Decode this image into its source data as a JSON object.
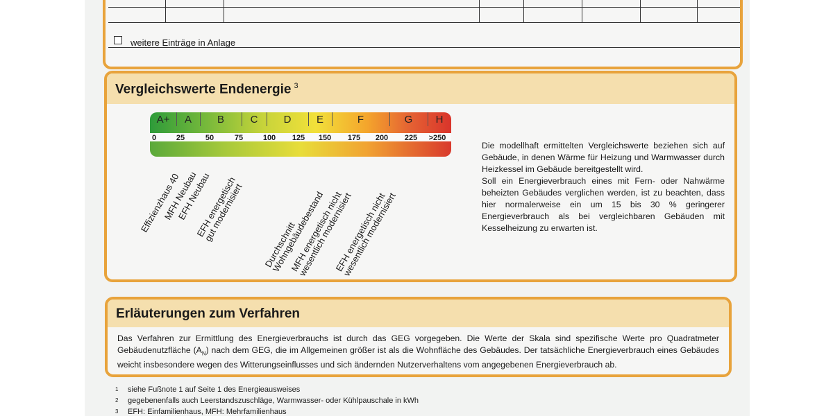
{
  "top_table": {
    "more_entries_label": "weitere Einträge in Anlage"
  },
  "vergleichswerte": {
    "title": "Vergleichswerte Endenergie",
    "title_footnote": "3",
    "scale_classes": [
      "A+",
      "A",
      "B",
      "C",
      "D",
      "E",
      "F",
      "G",
      "H"
    ],
    "scale_numbers": [
      "0",
      "25",
      "50",
      "75",
      "100",
      "125",
      "150",
      "175",
      "200",
      "225",
      ">250"
    ],
    "reference_labels": [
      "Effizienzhaus 40",
      "MFH Neubau",
      "EFH Neubau",
      "EFH energetisch\ngut modernisiert",
      "Durchschnitt\nWohngebäudebestand",
      "MFH energetisch nicht\nwesentlich modernisiert",
      "EFH energetisch nicht\nwesentlich modernisiert"
    ],
    "text_p1": "Die modellhaft ermittelten Vergleichswerte beziehen sich auf Gebäude, in denen Wärme für Heizung und Warmwasser durch Heizkessel im Gebäude bereitgestellt wird.",
    "text_p2": "Soll ein Energieverbrauch eines mit Fern- oder Nahwärme beheizten Gebäudes verglichen werden, ist zu beachten, dass hier normalerweise ein um 15 bis 30 % geringerer Energieverbrauch als bei vergleichbaren Gebäuden mit Kesselheizung zu erwarten ist."
  },
  "erlaeuterungen": {
    "title": "Erläuterungen zum Verfahren",
    "text_a": "Das Verfahren zur Ermittlung des Energieverbrauchs ist durch das GEG vorgegeben. Die Werte der Skala sind spezifische Werte pro Quadratmeter Gebäudenutzfläche (A",
    "text_sub": "N",
    "text_b": ") nach dem GEG, die im Allgemeinen größer ist als die Wohnfläche des Gebäudes. Der tatsächliche Energieverbrauch eines Gebäudes weicht insbesondere wegen des Witterungseinflusses und sich ändernden Nutzerverhaltens vom angegebenen Energieverbrauch ab."
  },
  "footnotes": [
    {
      "num": "1",
      "text": "siehe Fußnote 1 auf Seite 1 des Energieausweises"
    },
    {
      "num": "2",
      "text": "gegebenenfalls auch Leerstandszuschläge, Warmwasser- oder Kühlpauschale in kWh"
    },
    {
      "num": "3",
      "text": "EFH: Einfamilienhaus, MFH: Mehrfamilienhaus"
    }
  ]
}
